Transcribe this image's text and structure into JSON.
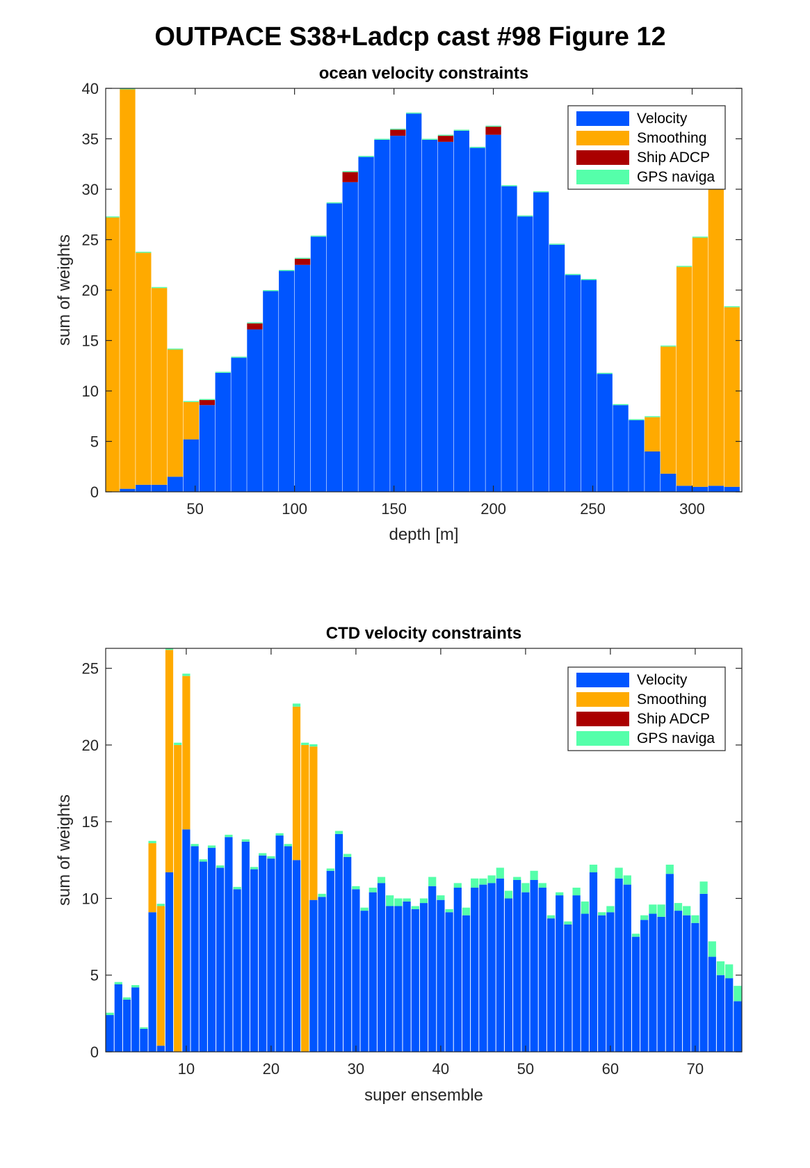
{
  "page": {
    "title": "OUTPACE S38+Ladcp cast #98  Figure 12"
  },
  "colors": {
    "Velocity": "#0055ff",
    "Smoothing": "#ffaa00",
    "Ship ADCP": "#aa0000",
    "GPS naviga": "#55ffaa"
  },
  "chart_data": [
    {
      "type": "bar",
      "stacked": true,
      "title": "ocean velocity constraints",
      "xlabel": "depth [m]",
      "ylabel": "sum of weights",
      "xlim": [
        5,
        325
      ],
      "ylim": [
        0,
        40
      ],
      "bar_width": 7.8,
      "xticks": [
        50,
        100,
        150,
        200,
        250,
        300
      ],
      "yticks": [
        0,
        5,
        10,
        15,
        20,
        25,
        30,
        35,
        40
      ],
      "grid": false,
      "legend": {
        "placement": "top-right",
        "entries": [
          "Velocity",
          "Smoothing",
          "Ship ADCP",
          "GPS naviga"
        ]
      },
      "x": [
        8,
        16,
        24,
        32,
        40,
        48,
        56,
        64,
        72,
        80,
        88,
        96,
        104,
        112,
        120,
        128,
        136,
        144,
        152,
        160,
        168,
        176,
        184,
        192,
        200,
        208,
        216,
        224,
        232,
        240,
        248,
        256,
        264,
        272,
        280,
        288,
        296,
        304,
        312,
        320
      ],
      "series": [
        {
          "name": "Velocity",
          "values": [
            0,
            0.3,
            0.7,
            0.7,
            1.5,
            5.2,
            8.6,
            11.8,
            13.3,
            16.1,
            19.9,
            21.9,
            22.5,
            25.3,
            28.6,
            30.7,
            33.2,
            34.9,
            35.3,
            37.5,
            34.9,
            34.7,
            35.8,
            34.1,
            35.4,
            30.3,
            27.3,
            29.7,
            24.5,
            21.5,
            21.0,
            11.7,
            8.6,
            7.1,
            4.0,
            1.8,
            0.6,
            0.5,
            0.6,
            0.5
          ]
        },
        {
          "name": "Smoothing",
          "values": [
            27.2,
            39.6,
            23.0,
            19.5,
            12.6,
            3.7,
            0,
            0,
            0,
            0,
            0,
            0,
            0,
            0,
            0,
            0,
            0,
            0,
            0,
            0,
            0,
            0,
            0,
            0,
            0,
            0,
            0,
            0,
            0,
            0,
            0,
            0,
            0,
            0,
            3.4,
            12.6,
            21.7,
            24.7,
            29.7,
            17.8
          ]
        },
        {
          "name": "Ship ADCP",
          "values": [
            0,
            0,
            0,
            0,
            0,
            0,
            0.5,
            0,
            0,
            0.6,
            0,
            0,
            0.6,
            0,
            0,
            1.0,
            0,
            0,
            0.6,
            0,
            0,
            0.6,
            0,
            0,
            0.8,
            0,
            0,
            0,
            0,
            0,
            0,
            0,
            0,
            0,
            0,
            0,
            0,
            0,
            0,
            0
          ]
        },
        {
          "name": "GPS naviga",
          "values": [
            0.1,
            0.1,
            0.1,
            0.1,
            0.1,
            0.1,
            0.1,
            0.1,
            0.1,
            0.1,
            0.1,
            0.1,
            0.1,
            0.1,
            0.1,
            0.1,
            0.1,
            0.1,
            0.1,
            0.1,
            0.1,
            0.1,
            0.1,
            0.1,
            0.1,
            0.1,
            0.1,
            0.1,
            0.1,
            0.1,
            0.1,
            0.1,
            0.1,
            0.1,
            0.1,
            0.1,
            0.1,
            0.1,
            0.1,
            0.1
          ]
        }
      ]
    },
    {
      "type": "bar",
      "stacked": true,
      "title": "CTD velocity constraints",
      "xlabel": "super ensemble",
      "ylabel": "sum of weights",
      "xlim": [
        0.5,
        75.5
      ],
      "ylim": [
        0,
        26.3
      ],
      "bar_width": 0.92,
      "xticks": [
        10,
        20,
        30,
        40,
        50,
        60,
        70
      ],
      "yticks": [
        0,
        5,
        10,
        15,
        20,
        25
      ],
      "grid": false,
      "legend": {
        "placement": "top-right",
        "entries": [
          "Velocity",
          "Smoothing",
          "Ship ADCP",
          "GPS naviga"
        ]
      },
      "x": [
        1,
        2,
        3,
        4,
        5,
        6,
        7,
        8,
        9,
        10,
        11,
        12,
        13,
        14,
        15,
        16,
        17,
        18,
        19,
        20,
        21,
        22,
        23,
        24,
        25,
        26,
        27,
        28,
        29,
        30,
        31,
        32,
        33,
        34,
        35,
        36,
        37,
        38,
        39,
        40,
        41,
        42,
        43,
        44,
        45,
        46,
        47,
        48,
        49,
        50,
        51,
        52,
        53,
        54,
        55,
        56,
        57,
        58,
        59,
        60,
        61,
        62,
        63,
        64,
        65,
        66,
        67,
        68,
        69,
        70,
        71,
        72,
        73,
        74,
        75
      ],
      "series": [
        {
          "name": "Velocity",
          "values": [
            2.4,
            4.4,
            3.4,
            4.2,
            1.5,
            9.1,
            0.4,
            11.7,
            0,
            14.5,
            13.4,
            12.4,
            13.3,
            12.0,
            14.0,
            10.6,
            13.7,
            11.9,
            12.8,
            12.6,
            14.1,
            13.4,
            12.5,
            0,
            9.9,
            10.1,
            11.8,
            14.2,
            12.7,
            10.6,
            9.2,
            10.4,
            11.0,
            9.5,
            9.5,
            9.8,
            9.3,
            9.7,
            10.8,
            9.9,
            9.1,
            10.7,
            8.9,
            10.7,
            10.9,
            11.0,
            11.3,
            10.0,
            11.2,
            10.4,
            11.2,
            10.7,
            8.7,
            10.2,
            8.3,
            10.2,
            9.0,
            11.7,
            8.9,
            9.1,
            11.3,
            10.9,
            7.5,
            8.6,
            9.0,
            8.8,
            11.6,
            9.2,
            8.9,
            8.4,
            10.3,
            6.2,
            5.0,
            4.8,
            3.3
          ]
        },
        {
          "name": "Smoothing",
          "values": [
            0,
            0,
            0,
            0,
            0,
            4.5,
            9.1,
            14.5,
            20.0,
            10.0,
            0,
            0,
            0,
            0,
            0,
            0,
            0,
            0,
            0,
            0,
            0,
            0,
            10.0,
            20.0,
            10.0,
            0,
            0,
            0,
            0,
            0,
            0,
            0,
            0,
            0,
            0,
            0,
            0,
            0,
            0,
            0,
            0,
            0,
            0,
            0,
            0,
            0,
            0,
            0,
            0,
            0,
            0,
            0,
            0,
            0,
            0,
            0,
            0,
            0,
            0,
            0,
            0,
            0,
            0,
            0,
            0,
            0,
            0,
            0,
            0,
            0,
            0,
            0,
            0,
            0,
            0
          ]
        },
        {
          "name": "Ship ADCP",
          "values": [
            0,
            0,
            0,
            0,
            0,
            0,
            0,
            0,
            0,
            0,
            0,
            0,
            0,
            0,
            0,
            0,
            0,
            0,
            0,
            0,
            0,
            0,
            0,
            0,
            0,
            0,
            0,
            0,
            0,
            0,
            0,
            0,
            0,
            0,
            0,
            0,
            0,
            0,
            0,
            0,
            0,
            0,
            0,
            0,
            0,
            0,
            0,
            0,
            0,
            0,
            0,
            0,
            0,
            0,
            0,
            0,
            0,
            0,
            0,
            0,
            0,
            0,
            0,
            0,
            0,
            0,
            0,
            0,
            0,
            0,
            0,
            0,
            0,
            0,
            0
          ]
        },
        {
          "name": "GPS naviga",
          "values": [
            0.15,
            0.15,
            0.15,
            0.15,
            0.1,
            0.15,
            0.15,
            0.15,
            0.15,
            0.15,
            0.15,
            0.15,
            0.15,
            0.15,
            0.15,
            0.15,
            0.15,
            0.15,
            0.15,
            0.15,
            0.15,
            0.15,
            0.2,
            0.15,
            0.15,
            0.2,
            0.15,
            0.2,
            0.2,
            0.2,
            0.2,
            0.3,
            0.4,
            0.7,
            0.5,
            0.2,
            0.2,
            0.3,
            0.6,
            0.3,
            0.2,
            0.3,
            0.5,
            0.6,
            0.4,
            0.5,
            0.7,
            0.5,
            0.2,
            0.6,
            0.6,
            0.3,
            0.2,
            0.2,
            0.2,
            0.5,
            0.8,
            0.5,
            0.2,
            0.4,
            0.7,
            0.6,
            0.2,
            0.3,
            0.6,
            0.8,
            0.6,
            0.5,
            0.6,
            0.5,
            0.8,
            1.0,
            0.9,
            0.9,
            1.0
          ]
        }
      ]
    }
  ]
}
